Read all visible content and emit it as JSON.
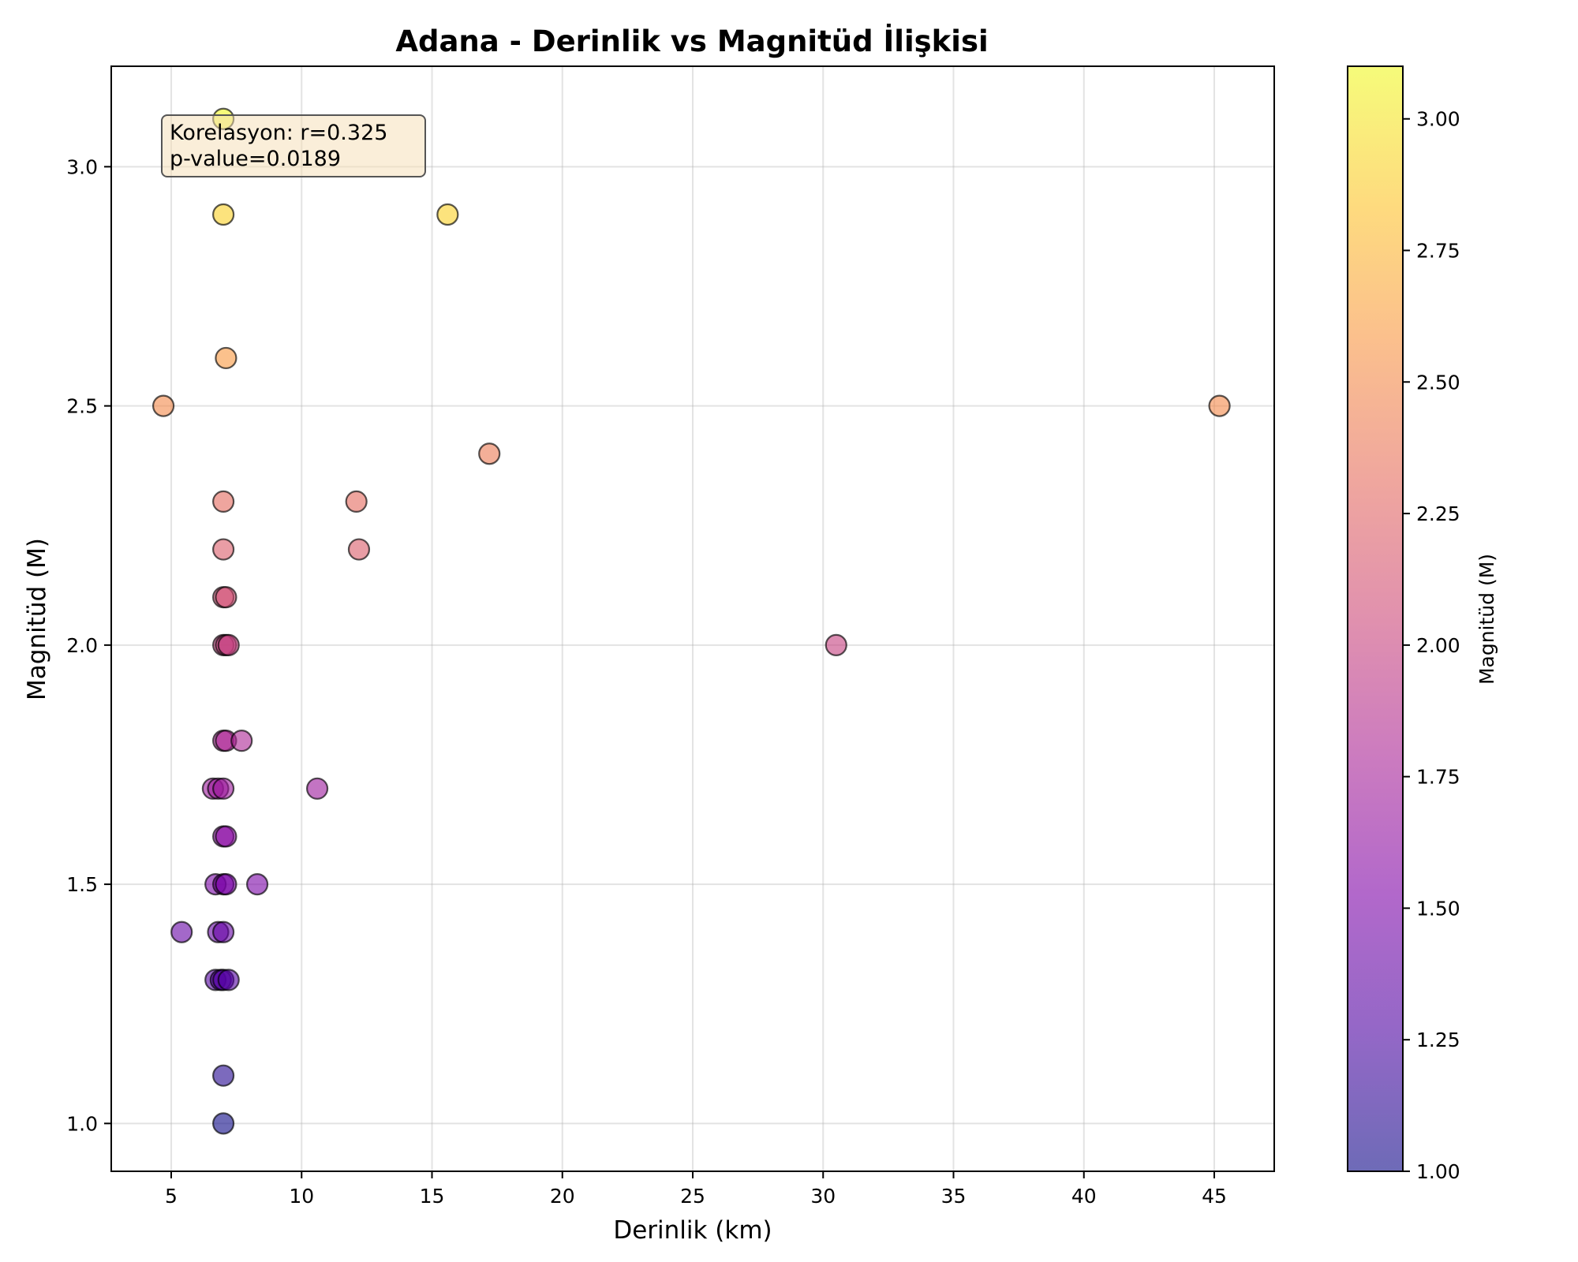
{
  "chart_data": {
    "type": "scatter",
    "title": "Adana - Derinlik vs Magnitüd İlişkisi",
    "xlabel": "Derinlik (km)",
    "ylabel": "Magnitüd (M)",
    "xlim": [
      2.7,
      47.3
    ],
    "ylim": [
      0.9,
      3.21
    ],
    "xticks": [
      5,
      10,
      15,
      20,
      25,
      30,
      35,
      40,
      45
    ],
    "xtick_labels": [
      "5",
      "10",
      "15",
      "20",
      "25",
      "30",
      "35",
      "40",
      "45"
    ],
    "yticks": [
      1.0,
      1.5,
      2.0,
      2.5,
      3.0
    ],
    "ytick_labels": [
      "1.0",
      "1.5",
      "2.0",
      "2.5",
      "3.0"
    ],
    "grid": true,
    "annotation": {
      "line1": "Korelasyon: r=0.325",
      "line2": "p-value=0.0189",
      "placement": "top-left"
    },
    "colorbar": {
      "label": "Magnitüd (M)",
      "colormap": "plasma",
      "range": [
        1.0,
        3.1
      ],
      "ticks": [
        1.0,
        1.25,
        1.5,
        1.75,
        2.0,
        2.25,
        2.5,
        2.75,
        3.0
      ],
      "tick_labels": [
        "1.00",
        "1.25",
        "1.50",
        "1.75",
        "2.00",
        "2.25",
        "2.50",
        "2.75",
        "3.00"
      ]
    },
    "points": [
      {
        "x": 7.0,
        "y": 3.1
      },
      {
        "x": 7.0,
        "y": 2.9
      },
      {
        "x": 15.6,
        "y": 2.9
      },
      {
        "x": 7.1,
        "y": 2.6
      },
      {
        "x": 4.7,
        "y": 2.5
      },
      {
        "x": 45.2,
        "y": 2.5
      },
      {
        "x": 17.2,
        "y": 2.4
      },
      {
        "x": 7.0,
        "y": 2.3
      },
      {
        "x": 12.1,
        "y": 2.3
      },
      {
        "x": 7.0,
        "y": 2.2
      },
      {
        "x": 12.2,
        "y": 2.2
      },
      {
        "x": 7.0,
        "y": 2.1
      },
      {
        "x": 7.1,
        "y": 2.1
      },
      {
        "x": 7.0,
        "y": 2.0
      },
      {
        "x": 7.1,
        "y": 2.0
      },
      {
        "x": 7.2,
        "y": 2.0
      },
      {
        "x": 30.5,
        "y": 2.0
      },
      {
        "x": 7.0,
        "y": 1.8
      },
      {
        "x": 7.1,
        "y": 1.8
      },
      {
        "x": 7.7,
        "y": 1.8
      },
      {
        "x": 6.6,
        "y": 1.7
      },
      {
        "x": 6.8,
        "y": 1.7
      },
      {
        "x": 7.0,
        "y": 1.7
      },
      {
        "x": 10.6,
        "y": 1.7
      },
      {
        "x": 7.0,
        "y": 1.6
      },
      {
        "x": 7.1,
        "y": 1.6
      },
      {
        "x": 6.7,
        "y": 1.5
      },
      {
        "x": 7.0,
        "y": 1.5
      },
      {
        "x": 7.1,
        "y": 1.5
      },
      {
        "x": 8.3,
        "y": 1.5
      },
      {
        "x": 5.4,
        "y": 1.4
      },
      {
        "x": 6.8,
        "y": 1.4
      },
      {
        "x": 7.0,
        "y": 1.4
      },
      {
        "x": 6.7,
        "y": 1.3
      },
      {
        "x": 6.9,
        "y": 1.3
      },
      {
        "x": 7.0,
        "y": 1.3
      },
      {
        "x": 7.2,
        "y": 1.3
      },
      {
        "x": 7.0,
        "y": 1.1
      },
      {
        "x": 7.0,
        "y": 1.0
      }
    ]
  }
}
